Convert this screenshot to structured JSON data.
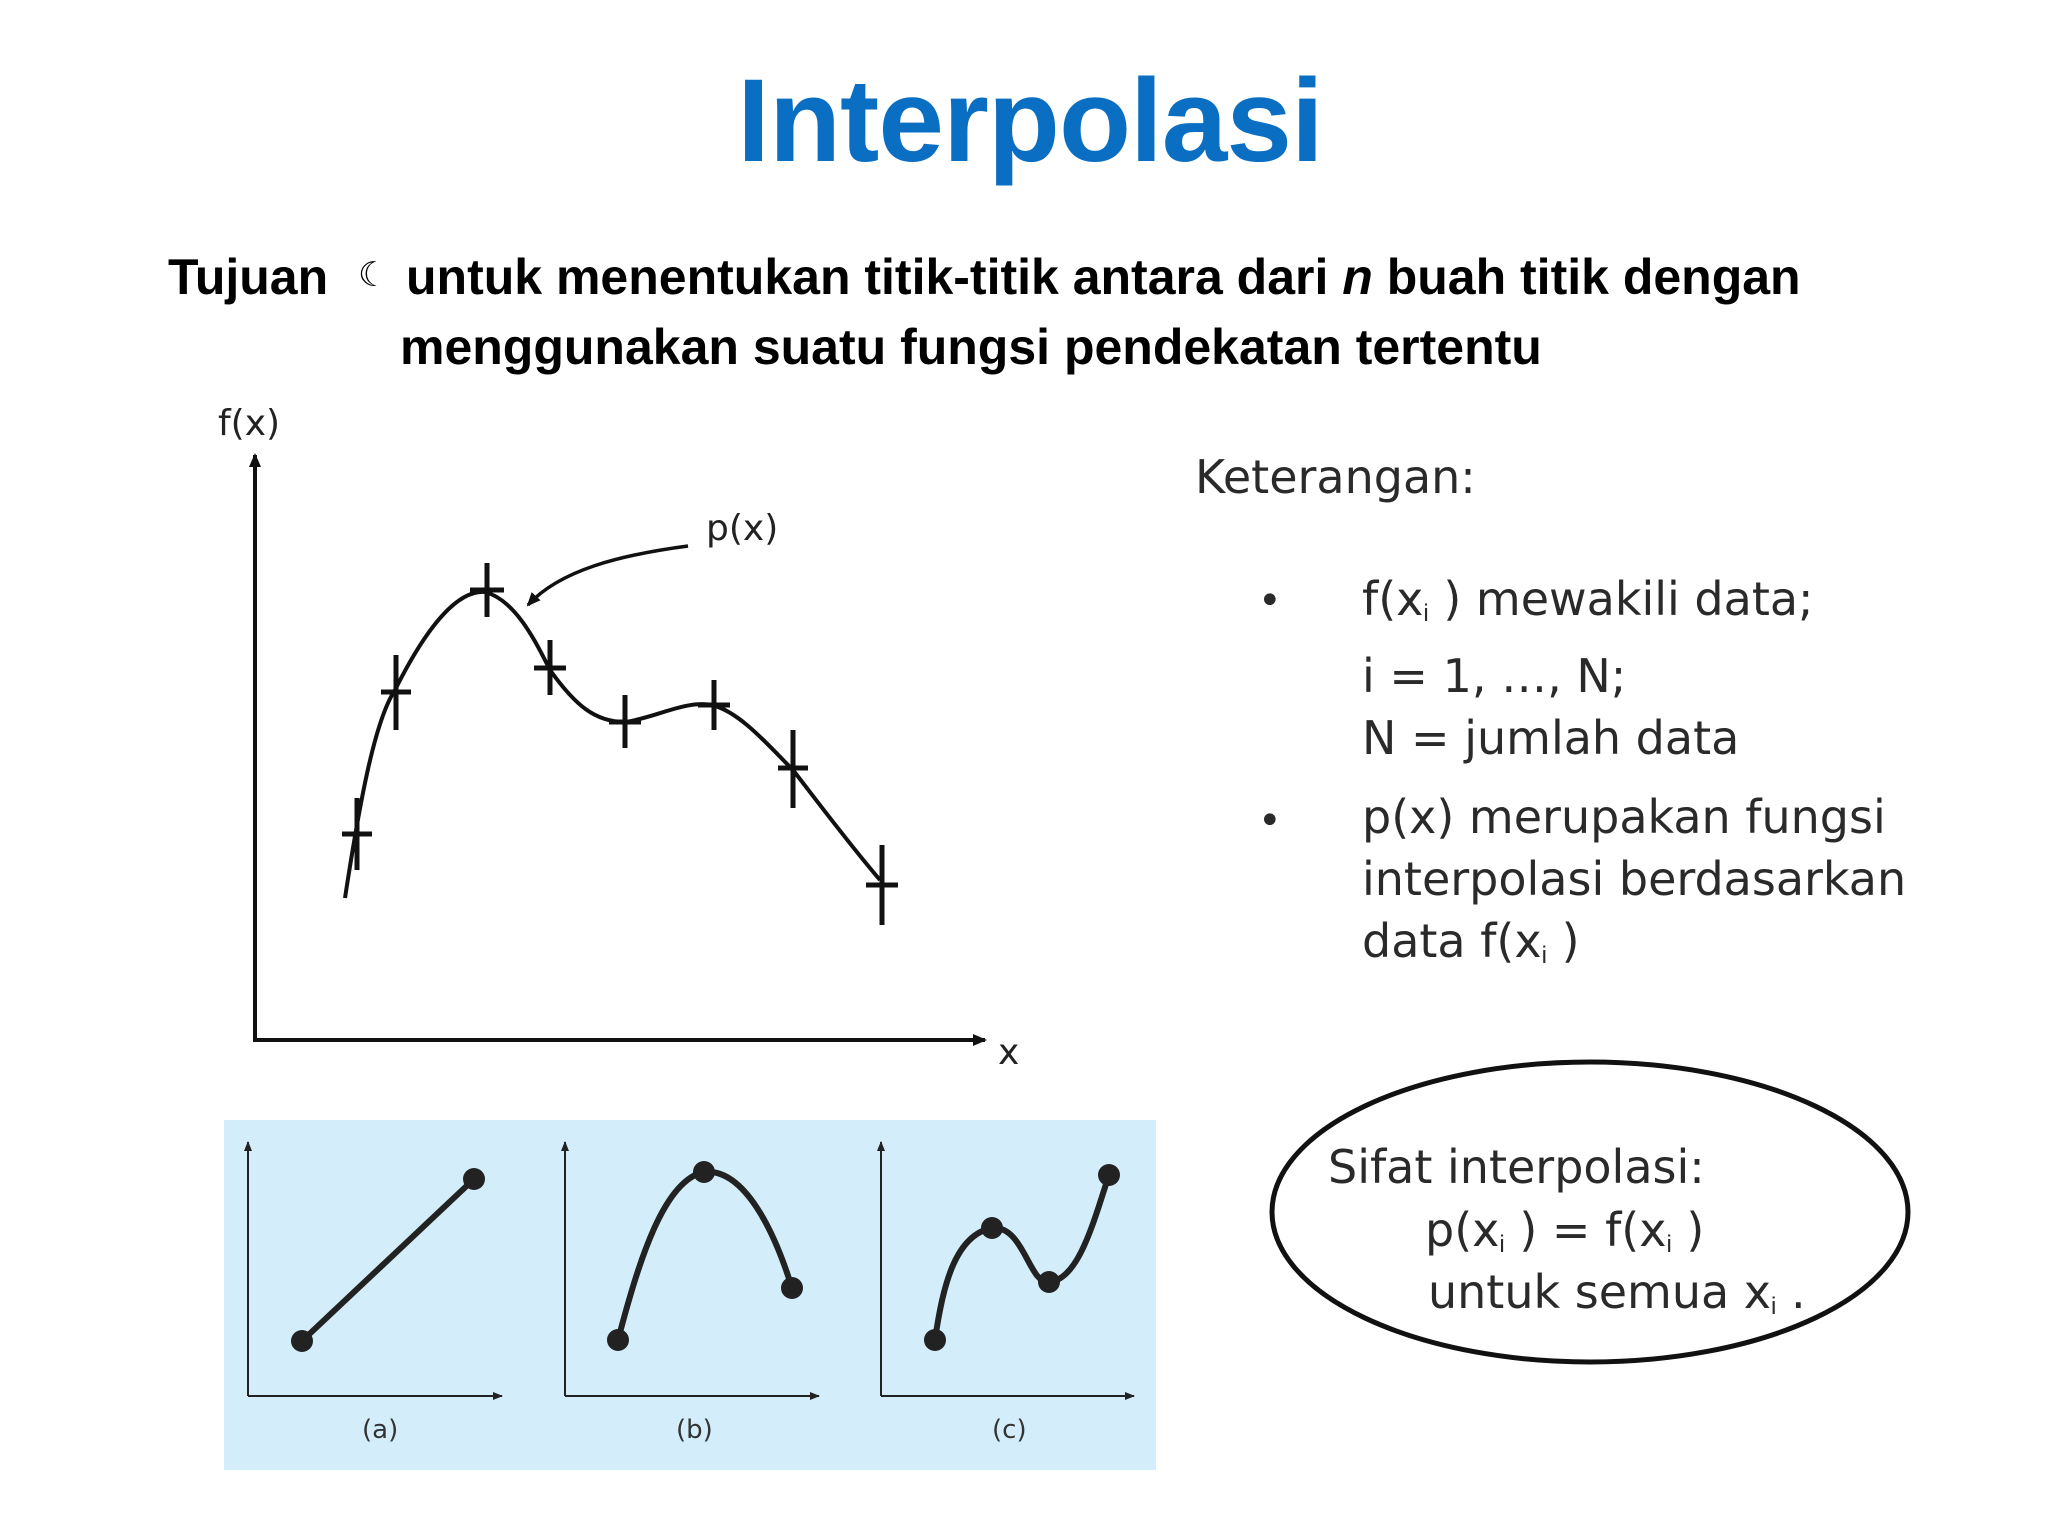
{
  "slide": {
    "title": "Interpolasi",
    "purpose": {
      "label": "Tujuan",
      "separator": "☾",
      "line1_a": "untuk menentukan titik-titik antara dari ",
      "line1_italic": "n",
      "line1_b": " buah titik dengan",
      "line2": "menggunakan suatu fungsi pendekatan tertentu"
    }
  },
  "main_graph": {
    "y_label": "f(x)",
    "x_label": "x",
    "curve_label": "p(x)"
  },
  "keterangan": {
    "title": "Keterangan:",
    "bullet_glyph": "•",
    "item1": {
      "l1_a": "f(x",
      "l1_sub": "i",
      "l1_b": " ) mewakili data;",
      "l2": "i = 1, …, N;",
      "l3": "N = jumlah data"
    },
    "item2": {
      "l1": "p(x) merupakan fungsi",
      "l2": "interpolasi berdasarkan",
      "l3_a": "data f(x",
      "l3_sub": "i",
      "l3_b": " )"
    }
  },
  "sifat": {
    "title": "Sifat interpolasi:",
    "eq_a": "p(x",
    "eq_sub1": "i",
    "eq_b": " ) = f(x",
    "eq_sub2": "i",
    "eq_c": " )",
    "l3_a": "untuk semua x",
    "l3_sub": "i",
    "l3_b": " ."
  },
  "examples": {
    "background": "#d3eefa",
    "labels": [
      "(a)",
      "(b)",
      "(c)"
    ]
  },
  "colors": {
    "title": "#0a6fc2",
    "handwriting": "#2a2a2a"
  }
}
